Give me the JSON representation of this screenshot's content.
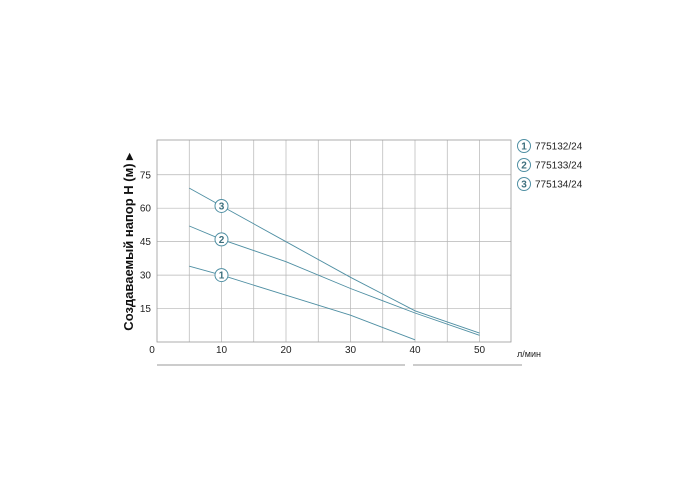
{
  "chart_data": {
    "type": "line",
    "ylabel": "Создаваемый напор H (м) ▸",
    "xlabel": "л/мин",
    "xlim": [
      0,
      50
    ],
    "ylim": [
      0,
      90
    ],
    "x_ticks": [
      0,
      10,
      20,
      30,
      40,
      50
    ],
    "y_ticks": [
      15,
      30,
      45,
      60,
      75
    ],
    "grid": true,
    "legend_placement": "right",
    "line_color": "#4f8fa3",
    "series": [
      {
        "name": "775132/24",
        "badge": "1",
        "points": [
          [
            5,
            34
          ],
          [
            10,
            30
          ],
          [
            20,
            21
          ],
          [
            30,
            12
          ],
          [
            40,
            1
          ]
        ]
      },
      {
        "name": "775133/24",
        "badge": "2",
        "points": [
          [
            5,
            52
          ],
          [
            10,
            46
          ],
          [
            20,
            36
          ],
          [
            30,
            24
          ],
          [
            40,
            13
          ],
          [
            50,
            3
          ]
        ]
      },
      {
        "name": "775134/24",
        "badge": "3",
        "points": [
          [
            5,
            69
          ],
          [
            10,
            61
          ],
          [
            20,
            45
          ],
          [
            30,
            29
          ],
          [
            40,
            14
          ],
          [
            50,
            4
          ]
        ]
      }
    ]
  }
}
